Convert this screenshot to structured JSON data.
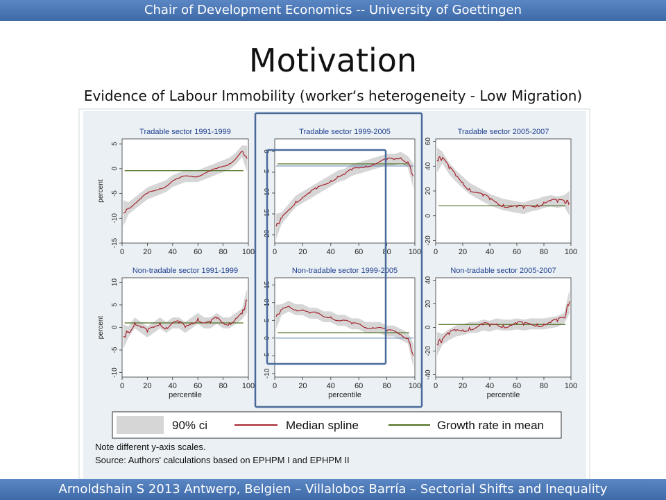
{
  "slide": {
    "header": "Chair of Development Economics -- University of Goettingen",
    "title": "Motivation",
    "subtitle": "Evidence of Labour Immobility (worker‘s heterogeneity - Low Migration)",
    "footer": "Arnoldshain S 2013 Antwerp, Belgien – Villalobos Barría – Sectorial Shifts and Inequality"
  },
  "figure": {
    "xlabel": "percentile",
    "xticks": [
      0,
      20,
      40,
      60,
      80,
      100
    ],
    "legend": {
      "ci": "90% ci",
      "median": "Median spline",
      "mean": "Growth rate in mean"
    },
    "note": "Note different y-axis scales.",
    "source": "Source: Authors' calculations based on EPHPM I and EPHPM II",
    "colors": {
      "median": "#a6242f",
      "mean": "#4d6e1f",
      "ci": "#d6d6d6",
      "highlight": "#4a6a9a",
      "panel_bg": "#eaf0f4"
    }
  },
  "chart_data": [
    {
      "type": "line",
      "title": "Tradable sector 1991-1999",
      "xlabel": "",
      "ylabel": "percent",
      "xlim": [
        0,
        100
      ],
      "ylim": [
        -15,
        6
      ],
      "yticks": [
        -15,
        -10,
        -5,
        0,
        5
      ],
      "mean": -0.4,
      "x": [
        1,
        5,
        10,
        15,
        20,
        25,
        30,
        35,
        40,
        45,
        50,
        55,
        60,
        65,
        70,
        75,
        80,
        85,
        90,
        95,
        99
      ],
      "series": [
        {
          "name": "Median spline",
          "values": [
            -9,
            -8,
            -7,
            -6,
            -5,
            -4.5,
            -4,
            -3.5,
            -2.5,
            -2,
            -1.5,
            -1.5,
            -1.5,
            -1,
            -0.5,
            0,
            0.5,
            1,
            2,
            3.5,
            2
          ]
        }
      ]
    },
    {
      "type": "line",
      "title": "Tradable sector 1999-2005",
      "xlabel": "",
      "ylabel": "",
      "xlim": [
        0,
        100
      ],
      "ylim": [
        -22,
        3
      ],
      "yticks": [
        -20,
        -15,
        -10,
        -5,
        0
      ],
      "mean": -3,
      "mean_full": -3.5,
      "x": [
        1,
        5,
        10,
        15,
        20,
        25,
        30,
        35,
        40,
        45,
        50,
        55,
        60,
        65,
        70,
        75,
        80,
        85,
        90,
        95,
        99
      ],
      "series": [
        {
          "name": "Median spline",
          "values": [
            -18,
            -16,
            -14,
            -12,
            -11,
            -10,
            -9,
            -8,
            -7,
            -6,
            -5.5,
            -4.5,
            -4,
            -3.5,
            -3,
            -2.5,
            -2,
            -2,
            -1.5,
            -2.5,
            -6
          ]
        }
      ]
    },
    {
      "type": "line",
      "title": "Tradable sector 2005-2007",
      "xlabel": "",
      "ylabel": "",
      "xlim": [
        0,
        100
      ],
      "ylim": [
        -22,
        62
      ],
      "yticks": [
        -20,
        0,
        20,
        40,
        60
      ],
      "mean": 8,
      "x": [
        1,
        5,
        10,
        15,
        20,
        25,
        30,
        35,
        40,
        45,
        50,
        55,
        60,
        65,
        70,
        75,
        80,
        85,
        90,
        95,
        99
      ],
      "series": [
        {
          "name": "Median spline",
          "values": [
            45,
            47,
            38,
            32,
            27,
            22,
            19,
            16,
            13,
            11,
            9,
            8,
            7,
            6,
            8,
            9,
            11,
            12,
            11,
            12,
            10
          ]
        }
      ]
    },
    {
      "type": "line",
      "title": "Non-tradable sector 1991-1999",
      "xlabel": "percentile",
      "ylabel": "percent",
      "xlim": [
        0,
        100
      ],
      "ylim": [
        -11,
        11
      ],
      "yticks": [
        -10,
        -5,
        0,
        5,
        10
      ],
      "mean": 1,
      "x": [
        1,
        5,
        10,
        15,
        20,
        25,
        30,
        35,
        40,
        45,
        50,
        55,
        60,
        65,
        70,
        75,
        80,
        85,
        90,
        95,
        99
      ],
      "series": [
        {
          "name": "Median spline",
          "values": [
            -2,
            -1,
            1,
            0,
            -1,
            0,
            1,
            0,
            1,
            1,
            0,
            1,
            2,
            1,
            1,
            2,
            1,
            1,
            2,
            3,
            6
          ]
        }
      ]
    },
    {
      "type": "line",
      "title": "Non-tradable sector 1999-2005",
      "xlabel": "percentile",
      "ylabel": "",
      "xlim": [
        0,
        100
      ],
      "ylim": [
        -11,
        17
      ],
      "yticks": [
        -10,
        -5,
        0,
        5,
        10,
        15
      ],
      "mean": 1.5,
      "mean_full": 0,
      "x": [
        1,
        5,
        10,
        15,
        20,
        25,
        30,
        35,
        40,
        45,
        50,
        55,
        60,
        65,
        70,
        75,
        80,
        85,
        90,
        95,
        99
      ],
      "series": [
        {
          "name": "Median spline",
          "values": [
            6,
            8,
            9,
            8,
            8,
            7,
            7,
            6,
            6,
            5,
            5,
            4,
            4,
            3,
            3,
            3,
            2,
            2,
            1,
            0,
            -5
          ]
        }
      ]
    },
    {
      "type": "line",
      "title": "Non-tradable sector 2005-2007",
      "xlabel": "percentile",
      "ylabel": "",
      "xlim": [
        0,
        100
      ],
      "ylim": [
        -42,
        42
      ],
      "yticks": [
        -40,
        -20,
        0,
        20,
        40
      ],
      "mean": 2.5,
      "x": [
        1,
        5,
        10,
        15,
        20,
        25,
        30,
        35,
        40,
        45,
        50,
        55,
        60,
        65,
        70,
        75,
        80,
        85,
        90,
        95,
        99
      ],
      "series": [
        {
          "name": "Median spline",
          "values": [
            -14,
            -10,
            -6,
            -3,
            -2,
            0,
            0,
            2,
            1,
            3,
            2,
            2,
            3,
            2,
            3,
            3,
            3,
            4,
            5,
            8,
            22
          ]
        }
      ]
    }
  ]
}
